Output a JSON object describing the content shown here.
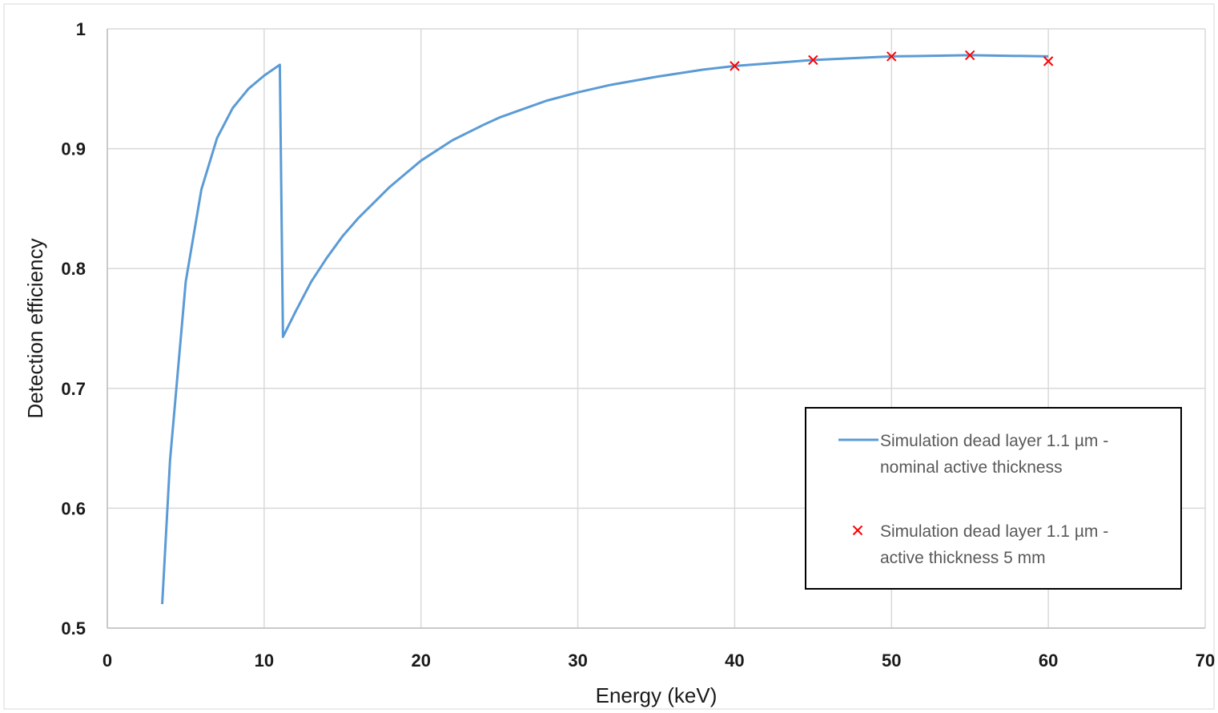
{
  "chart_data": {
    "type": "line",
    "title": "",
    "xlabel": "Energy (keV)",
    "ylabel": "Detection efficiency",
    "xlim": [
      0,
      70
    ],
    "ylim": [
      0.5,
      1
    ],
    "x_ticks": [
      0,
      10,
      20,
      30,
      40,
      50,
      60,
      70
    ],
    "y_ticks": [
      0.5,
      0.6,
      0.7,
      0.8,
      0.9,
      1
    ],
    "y_tick_labels": [
      "0.5",
      "0.6",
      "0.7",
      "0.8",
      "0.9",
      "1"
    ],
    "grid": true,
    "legend_position": "bottom-right",
    "series": [
      {
        "name": "Simulation dead layer 1.1 µm - nominal active thickness",
        "kind": "line",
        "color": "#5b9bd5",
        "x": [
          3.5,
          4,
          5,
          6,
          7,
          8,
          9,
          10,
          11,
          11.2,
          12,
          13,
          14,
          15,
          16,
          18,
          20,
          22,
          24,
          25,
          28,
          30,
          32,
          35,
          38,
          40,
          45,
          50,
          55,
          60
        ],
        "y": [
          0.52,
          0.64,
          0.789,
          0.866,
          0.909,
          0.934,
          0.95,
          0.961,
          0.97,
          0.743,
          0.764,
          0.789,
          0.809,
          0.827,
          0.842,
          0.868,
          0.89,
          0.907,
          0.92,
          0.926,
          0.94,
          0.947,
          0.953,
          0.96,
          0.966,
          0.969,
          0.974,
          0.977,
          0.978,
          0.977
        ]
      },
      {
        "name": "Simulation dead layer 1.1 µm - active thickness 5 mm",
        "kind": "scatter",
        "marker": "x",
        "color": "#ff0000",
        "x": [
          40,
          45,
          50,
          55,
          60
        ],
        "y": [
          0.969,
          0.974,
          0.977,
          0.978,
          0.973
        ]
      }
    ],
    "legend_lines": [
      [
        "Simulation dead layer 1.1 µm -",
        "nominal active thickness"
      ],
      [
        "Simulation dead layer 1.1 µm -",
        "active thickness 5 mm"
      ]
    ]
  }
}
